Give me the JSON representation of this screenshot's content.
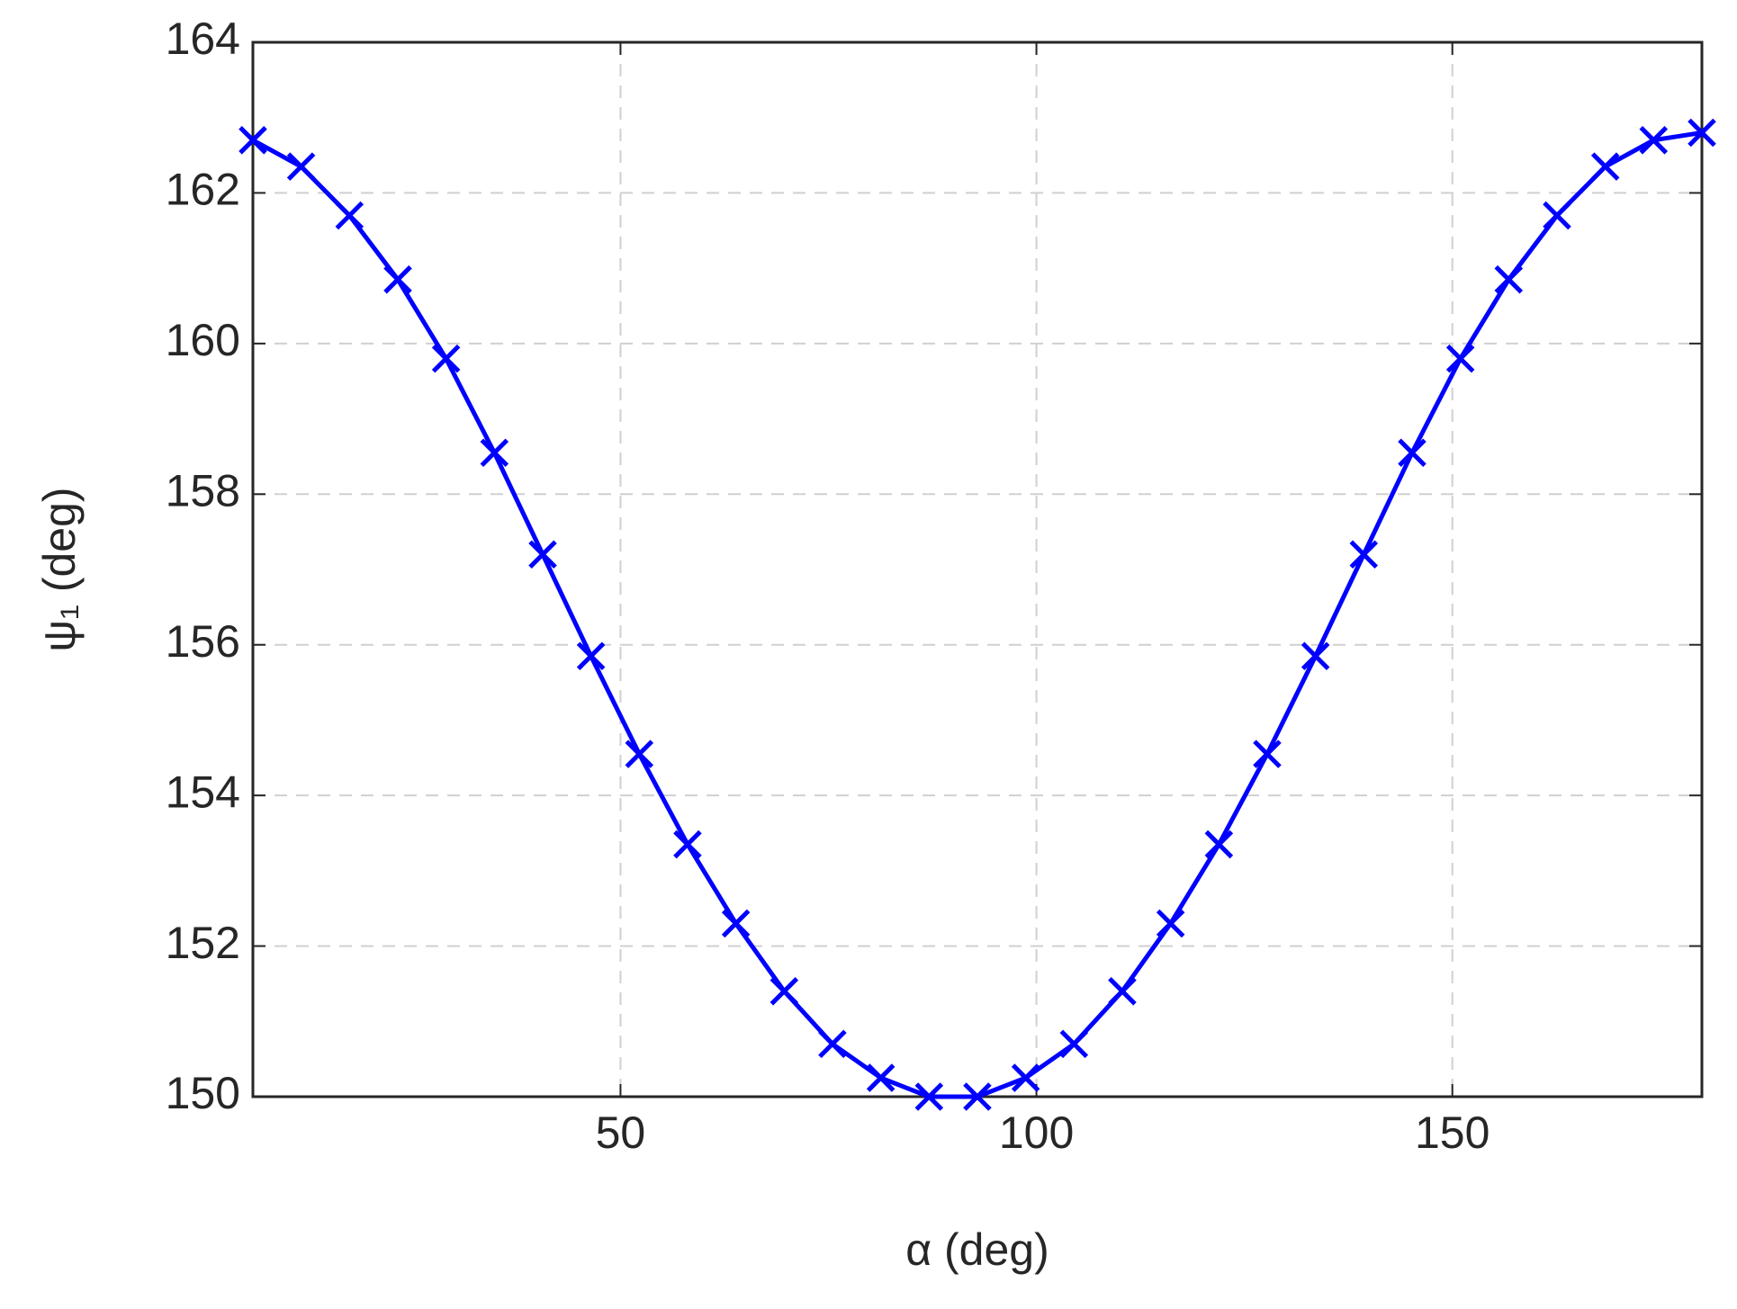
{
  "chart_data": {
    "type": "line",
    "xlabel": "α (deg)",
    "ylabel": "ψ₁ (deg)",
    "x": [
      5.81,
      11.61,
      17.42,
      23.23,
      29.03,
      34.84,
      40.65,
      46.45,
      52.26,
      58.06,
      63.87,
      69.68,
      75.48,
      81.29,
      87.1,
      92.9,
      98.71,
      104.52,
      110.32,
      116.13,
      121.94,
      127.74,
      133.55,
      139.35,
      145.16,
      150.97,
      156.77,
      162.58,
      168.39,
      174.19,
      180
    ],
    "series": [
      {
        "name": "ψ₁",
        "color": "#0000ff",
        "values": [
          162.7,
          162.35,
          161.7,
          160.85,
          159.8,
          158.55,
          157.2,
          155.85,
          154.55,
          153.35,
          152.3,
          151.4,
          150.7,
          150.25,
          150.0,
          150.0,
          150.25,
          150.7,
          151.4,
          152.3,
          153.35,
          154.55,
          155.85,
          157.2,
          158.55,
          159.8,
          160.85,
          161.7,
          162.35,
          162.7,
          162.8
        ]
      }
    ],
    "xlim": [
      5.81,
      180
    ],
    "xticks": [
      50,
      100,
      150
    ],
    "ylim": [
      150,
      164
    ],
    "yticks": [
      150,
      152,
      154,
      156,
      158,
      160,
      162,
      164
    ],
    "grid": true
  }
}
